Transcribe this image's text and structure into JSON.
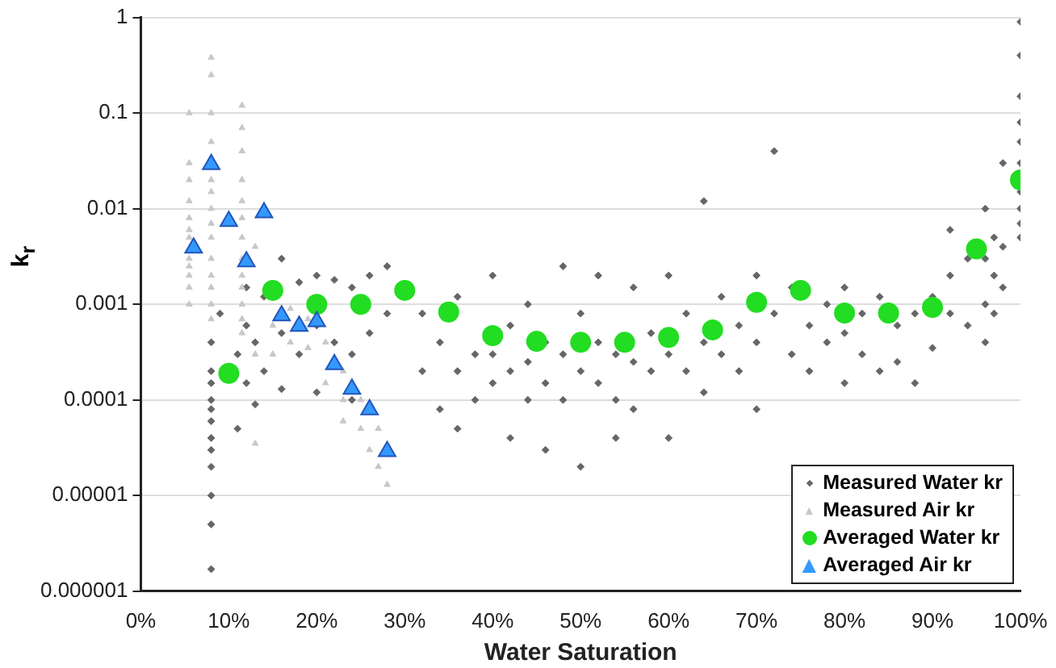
{
  "chart_data": {
    "type": "scatter",
    "xlabel": "Water Saturation",
    "ylabel": "k$_{r}$",
    "log": "y",
    "grid": "y",
    "legend": "bottom right",
    "xlim": [
      0,
      100
    ],
    "xticks": [
      {
        "value": 0,
        "label": "0%"
      },
      {
        "value": 10,
        "label": "10%"
      },
      {
        "value": 20,
        "label": "20%"
      },
      {
        "value": 30,
        "label": "30%"
      },
      {
        "value": 40,
        "label": "40%"
      },
      {
        "value": 50,
        "label": "50%"
      },
      {
        "value": 60,
        "label": "60%"
      },
      {
        "value": 70,
        "label": "70%"
      },
      {
        "value": 80,
        "label": "80%"
      },
      {
        "value": 90,
        "label": "90%"
      },
      {
        "value": 100,
        "label": "100%"
      }
    ],
    "ylim": [
      1e-06,
      1
    ],
    "yticks": [
      {
        "value": 1e-06,
        "label": "0.000001"
      },
      {
        "value": 1e-05,
        "label": "0.00001"
      },
      0.0001,
      0.001,
      0.01,
      0.1,
      1
    ],
    "series": [
      {
        "name": "Measured Water kr",
        "color": "#666666",
        "marker": "diamond",
        "x": [
          8,
          8,
          8,
          8,
          8,
          8,
          8,
          8,
          8,
          8,
          8,
          8,
          9,
          11,
          11,
          12,
          12,
          12,
          13,
          13,
          14,
          14,
          16,
          16,
          16,
          18,
          18,
          20,
          20,
          20,
          22,
          22,
          24,
          24,
          24,
          26,
          26,
          28,
          28,
          32,
          32,
          34,
          34,
          36,
          36,
          36,
          38,
          38,
          40,
          40,
          40,
          42,
          42,
          42,
          44,
          44,
          44,
          46,
          46,
          46,
          48,
          48,
          48,
          50,
          50,
          50,
          52,
          52,
          52,
          54,
          54,
          54,
          56,
          56,
          56,
          58,
          58,
          60,
          60,
          60,
          62,
          62,
          64,
          64,
          64,
          66,
          66,
          68,
          68,
          70,
          70,
          70,
          72,
          72,
          74,
          74,
          76,
          76,
          78,
          78,
          80,
          80,
          80,
          82,
          82,
          84,
          84,
          86,
          86,
          88,
          88,
          90,
          90,
          92,
          92,
          92,
          94,
          94,
          96,
          96,
          96,
          96,
          97,
          97,
          97,
          98,
          98,
          98,
          100,
          100,
          100,
          100,
          100,
          100,
          100,
          100,
          100,
          100
        ],
        "values": [
          0.0004,
          0.0002,
          0.0001,
          6e-05,
          3e-05,
          1e-05,
          5e-06,
          1.7e-06,
          0.00015,
          8e-05,
          4e-05,
          2e-05,
          0.0008,
          0.0003,
          5e-05,
          0.0015,
          0.0006,
          0.00015,
          0.0004,
          9e-05,
          0.0012,
          0.0002,
          0.003,
          0.0005,
          0.00013,
          0.0017,
          0.0003,
          0.002,
          0.0006,
          0.00012,
          0.0018,
          0.0004,
          0.0015,
          0.0003,
          0.0001,
          0.002,
          0.0005,
          0.0025,
          0.0008,
          0.0008,
          0.0002,
          0.0004,
          8e-05,
          0.0012,
          0.0002,
          5e-05,
          0.0003,
          0.0001,
          0.002,
          0.0003,
          0.00015,
          0.0006,
          0.0002,
          4e-05,
          0.001,
          0.00025,
          0.0001,
          0.0004,
          0.00015,
          3e-05,
          0.0025,
          0.0003,
          0.0001,
          0.0008,
          0.0002,
          2e-05,
          0.002,
          0.0004,
          0.00015,
          0.0003,
          0.0001,
          4e-05,
          0.0015,
          0.00025,
          8e-05,
          0.0005,
          0.0002,
          0.002,
          0.0003,
          4e-05,
          0.0008,
          0.0002,
          0.012,
          0.0004,
          0.00012,
          0.0012,
          0.0003,
          0.0006,
          0.0002,
          0.002,
          0.0004,
          8e-05,
          0.04,
          0.0008,
          0.0015,
          0.0003,
          0.0006,
          0.0002,
          0.001,
          0.0004,
          0.0015,
          0.0005,
          0.00015,
          0.0008,
          0.0003,
          0.0012,
          0.0002,
          0.0006,
          0.00025,
          0.0008,
          0.00015,
          0.0012,
          0.00035,
          0.006,
          0.002,
          0.0008,
          0.003,
          0.0006,
          0.01,
          0.003,
          0.001,
          0.0004,
          0.005,
          0.002,
          0.0008,
          0.03,
          0.004,
          0.0015,
          0.9,
          0.4,
          0.15,
          0.08,
          0.05,
          0.03,
          0.015,
          0.01,
          0.007,
          0.005
        ]
      },
      {
        "name": "Measured Air kr",
        "color": "#c8c8c8",
        "marker": "triangle",
        "x": [
          5.5,
          5.5,
          5.5,
          5.5,
          5.5,
          5.5,
          5.5,
          5.5,
          5.5,
          5.5,
          5.5,
          5.5,
          8,
          8,
          8,
          8,
          8,
          8,
          8,
          8,
          8,
          8,
          8,
          8,
          8,
          8,
          11.5,
          11.5,
          11.5,
          11.5,
          11.5,
          11.5,
          11.5,
          11.5,
          11.5,
          11.5,
          11.5,
          11.5,
          11.5,
          13,
          13,
          13,
          15,
          15,
          17,
          17,
          19,
          19,
          21,
          21,
          23,
          23,
          23,
          25,
          25,
          26,
          27,
          27,
          28
        ],
        "values": [
          0.1,
          0.03,
          0.02,
          0.012,
          0.008,
          0.006,
          0.005,
          0.003,
          0.0025,
          0.002,
          0.0015,
          0.001,
          0.38,
          0.25,
          0.1,
          0.05,
          0.02,
          0.015,
          0.01,
          0.007,
          0.005,
          0.003,
          0.002,
          0.0015,
          0.001,
          0.0007,
          0.12,
          0.07,
          0.04,
          0.02,
          0.012,
          0.008,
          0.005,
          0.003,
          0.002,
          0.0015,
          0.001,
          0.0007,
          0.0005,
          0.004,
          0.0003,
          3.5e-05,
          0.0006,
          0.0003,
          0.0009,
          0.0004,
          0.0007,
          0.00035,
          0.0004,
          0.00015,
          0.0002,
          0.0001,
          6e-05,
          0.0001,
          5e-05,
          3e-05,
          5e-05,
          2e-05,
          1.3e-05
        ]
      },
      {
        "name": "Averaged Water kr",
        "color": "#22dd22",
        "marker": "circle",
        "x": [
          10,
          15,
          20,
          25,
          30,
          35,
          40,
          45,
          50,
          55,
          60,
          65,
          70,
          75,
          80,
          85,
          90,
          95,
          100
        ],
        "values": [
          0.00019,
          0.0014,
          0.001,
          0.001,
          0.0014,
          0.00083,
          0.00047,
          0.00041,
          0.0004,
          0.0004,
          0.00045,
          0.00054,
          0.00105,
          0.0014,
          0.00081,
          0.00081,
          0.00093,
          0.0038,
          0.02
        ]
      },
      {
        "name": "Averaged Air kr",
        "color": "#3399ff",
        "marker": "triangle",
        "x": [
          6,
          8,
          10,
          12,
          14,
          16,
          18,
          20,
          22,
          24,
          26,
          28
        ],
        "values": [
          0.0039,
          0.029,
          0.0074,
          0.0028,
          0.0091,
          0.00076,
          0.00059,
          0.00066,
          0.000235,
          0.00013,
          7.9e-05,
          2.9e-05
        ]
      }
    ]
  }
}
